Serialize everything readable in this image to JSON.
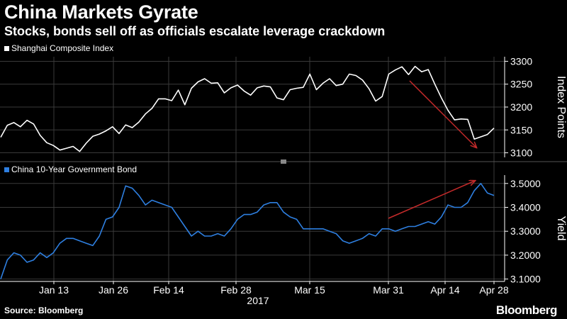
{
  "header": {
    "title": "China Markets Gyrate",
    "subtitle": "Stocks, bonds sell off as officials escalate leverage crackdown"
  },
  "footer": {
    "source": "Source: Bloomberg",
    "brand": "Bloomberg"
  },
  "colors": {
    "background": "#000000",
    "series_top": "#ffffff",
    "series_bottom": "#2e7fe0",
    "annotation_arrow": "#c42a2a",
    "grid": "#3a3a3a"
  },
  "chart_data": {
    "type": "line",
    "shared_x_ticks": [
      "Jan 13",
      "Jan 26",
      "Feb 14",
      "Feb 28",
      "Mar 15",
      "Mar 31",
      "Apr 14",
      "Apr 28"
    ],
    "x_year_label": "2017",
    "grid": true,
    "panels": [
      {
        "legend": "Shanghai Composite Index",
        "ylabel": "Index Points",
        "ylim": [
          3090,
          3310
        ],
        "yticks": [
          3100,
          3150,
          3200,
          3250,
          3300
        ],
        "ytick_labels": [
          "3100",
          "3150",
          "3200",
          "3250",
          "3300"
        ],
        "series": [
          {
            "name": "Shanghai Composite Index",
            "values": [
              3134,
              3160,
              3166,
              3157,
              3171,
              3163,
              3138,
              3122,
              3116,
              3106,
              3110,
              3114,
              3103,
              3121,
              3136,
              3141,
              3148,
              3157,
              3142,
              3161,
              3155,
              3167,
              3185,
              3197,
              3218,
              3218,
              3214,
              3237,
              3205,
              3241,
              3255,
              3262,
              3252,
              3253,
              3231,
              3242,
              3248,
              3235,
              3226,
              3242,
              3246,
              3244,
              3220,
              3216,
              3238,
              3241,
              3243,
              3272,
              3238,
              3252,
              3262,
              3247,
              3250,
              3272,
              3269,
              3259,
              3240,
              3213,
              3223,
              3272,
              3281,
              3288,
              3271,
              3289,
              3277,
              3282,
              3250,
              3220,
              3193,
              3172,
              3174,
              3173,
              3130,
              3135,
              3140,
              3154
            ]
          }
        ],
        "annotation": "downward-arrow"
      },
      {
        "legend": "China 10-Year Government Bond",
        "ylabel": "Yield",
        "ylim": [
          3.09,
          3.535
        ],
        "yticks": [
          3.1,
          3.2,
          3.3,
          3.4,
          3.5
        ],
        "ytick_labels": [
          "3.1000",
          "3.2000",
          "3.3000",
          "3.4000",
          "3.5000"
        ],
        "series": [
          {
            "name": "China 10-Year Government Bond",
            "values": [
              3.1,
              3.18,
              3.21,
              3.2,
              3.17,
              3.18,
              3.21,
              3.19,
              3.21,
              3.25,
              3.27,
              3.27,
              3.26,
              3.25,
              3.24,
              3.28,
              3.35,
              3.36,
              3.4,
              3.49,
              3.48,
              3.45,
              3.41,
              3.43,
              3.42,
              3.41,
              3.4,
              3.36,
              3.32,
              3.28,
              3.3,
              3.28,
              3.28,
              3.29,
              3.28,
              3.31,
              3.35,
              3.37,
              3.37,
              3.38,
              3.41,
              3.42,
              3.42,
              3.38,
              3.36,
              3.35,
              3.31,
              3.31,
              3.31,
              3.31,
              3.3,
              3.29,
              3.26,
              3.25,
              3.26,
              3.27,
              3.29,
              3.28,
              3.31,
              3.31,
              3.3,
              3.31,
              3.32,
              3.32,
              3.33,
              3.34,
              3.33,
              3.36,
              3.41,
              3.4,
              3.4,
              3.42,
              3.47,
              3.5,
              3.46,
              3.45
            ]
          }
        ],
        "annotation": "upward-arrow"
      }
    ]
  }
}
